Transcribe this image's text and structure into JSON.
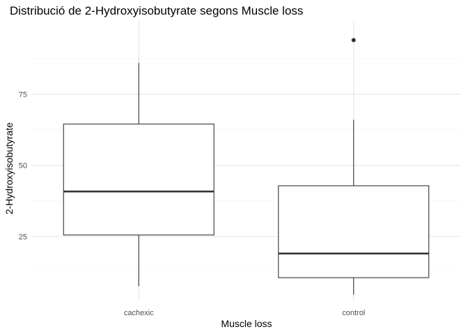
{
  "chart_data": {
    "type": "boxplot",
    "title": "Distribució de 2-Hydroxyisobutyrate segons Muscle loss",
    "xlabel": "Muscle loss",
    "ylabel": "2-Hydroxyisobutyrate",
    "categories": [
      "cachexic",
      "control"
    ],
    "y_ticks": [
      25,
      50,
      75
    ],
    "y_tick_labels": [
      "25",
      "50",
      "75"
    ],
    "ylim": [
      2.2,
      100.5
    ],
    "grid": true,
    "boxes": [
      {
        "category": "cachexic",
        "whisker_low": 7.5,
        "q1": 25.5,
        "median": 40.8,
        "q3": 64.5,
        "whisker_high": 86.0,
        "outliers": []
      },
      {
        "category": "control",
        "whisker_low": 4.5,
        "q1": 10.5,
        "median": 19.0,
        "q3": 42.8,
        "whisker_high": 66.0,
        "outliers": [
          94.0
        ]
      }
    ],
    "colors": {
      "line": "#333333",
      "grid_major": "#e5e5e5",
      "grid_minor": "#f2f2f2",
      "background": "#ffffff"
    }
  }
}
